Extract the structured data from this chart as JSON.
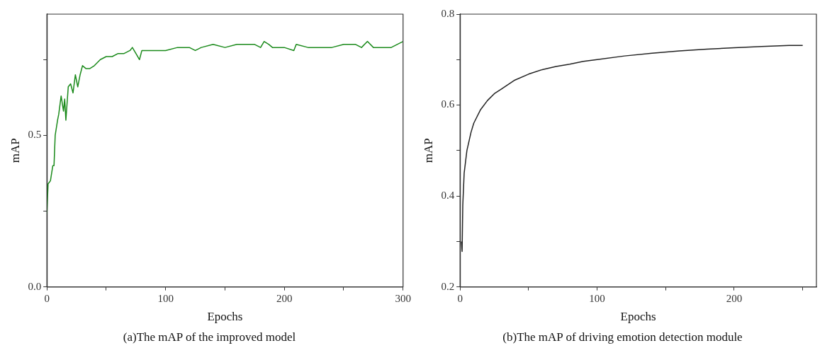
{
  "chart_data": [
    {
      "type": "line",
      "xlabel": "Epochs",
      "ylabel": "mAP",
      "annotations": [
        "(a)The mAP of the improved model"
      ],
      "grid": false,
      "legend": false,
      "xlim": [
        0,
        300
      ],
      "xticks": [
        0,
        {
          "value": 50,
          "label": null
        },
        100,
        {
          "value": 150,
          "label": null
        },
        200,
        {
          "value": 250,
          "label": null
        },
        300
      ],
      "ylim": [
        0,
        0.9
      ],
      "yticks": [
        {
          "value": 0,
          "label": "0.0"
        },
        {
          "value": 0.25,
          "label": null
        },
        0.5,
        {
          "value": 0.75,
          "label": null
        }
      ],
      "series": [
        {
          "color": "#1a8a1a",
          "x": [
            0,
            1,
            3,
            5,
            6,
            7,
            9,
            10,
            12,
            14,
            15,
            16,
            18,
            20,
            22,
            24,
            26,
            28,
            30,
            33,
            36,
            40,
            45,
            50,
            55,
            60,
            65,
            70,
            72,
            75,
            78,
            80,
            90,
            100,
            110,
            120,
            125,
            130,
            140,
            150,
            160,
            170,
            175,
            180,
            183,
            187,
            190,
            200,
            208,
            210,
            220,
            230,
            240,
            250,
            260,
            265,
            270,
            275,
            280,
            290,
            295,
            300
          ],
          "values": [
            0.24,
            0.34,
            0.35,
            0.4,
            0.4,
            0.5,
            0.55,
            0.57,
            0.63,
            0.58,
            0.62,
            0.55,
            0.66,
            0.67,
            0.64,
            0.7,
            0.66,
            0.7,
            0.73,
            0.72,
            0.72,
            0.73,
            0.75,
            0.76,
            0.76,
            0.77,
            0.77,
            0.78,
            0.79,
            0.77,
            0.75,
            0.78,
            0.78,
            0.78,
            0.79,
            0.79,
            0.78,
            0.79,
            0.8,
            0.79,
            0.8,
            0.8,
            0.8,
            0.79,
            0.81,
            0.8,
            0.79,
            0.79,
            0.78,
            0.8,
            0.79,
            0.79,
            0.79,
            0.8,
            0.8,
            0.79,
            0.81,
            0.79,
            0.79,
            0.79,
            0.8,
            0.81
          ]
        }
      ]
    },
    {
      "type": "line",
      "xlabel": "Epochs",
      "ylabel": "mAP",
      "annotations": [
        "(b)The mAP of driving emotion detection module"
      ],
      "grid": false,
      "legend": false,
      "xlim": [
        0,
        260
      ],
      "xticks": [
        0,
        {
          "value": 50,
          "label": null
        },
        100,
        {
          "value": 150,
          "label": null
        },
        200,
        {
          "value": 250,
          "label": null
        }
      ],
      "ylim": [
        0.2,
        0.8
      ],
      "yticks": [
        0.2,
        {
          "value": 0.3,
          "label": null
        },
        0.4,
        {
          "value": 0.5,
          "label": null
        },
        0.6,
        {
          "value": 0.7,
          "label": null
        },
        0.8
      ],
      "series": [
        {
          "color": "#222222",
          "x": [
            1,
            1.5,
            2,
            3,
            5,
            8,
            10,
            15,
            20,
            25,
            30,
            40,
            50,
            60,
            70,
            80,
            90,
            100,
            120,
            140,
            160,
            180,
            200,
            220,
            240,
            250
          ],
          "values": [
            0.3,
            0.278,
            0.38,
            0.45,
            0.5,
            0.54,
            0.56,
            0.59,
            0.61,
            0.625,
            0.635,
            0.655,
            0.668,
            0.678,
            0.685,
            0.69,
            0.696,
            0.7,
            0.708,
            0.714,
            0.719,
            0.723,
            0.726,
            0.729,
            0.731,
            0.731
          ]
        }
      ]
    }
  ]
}
